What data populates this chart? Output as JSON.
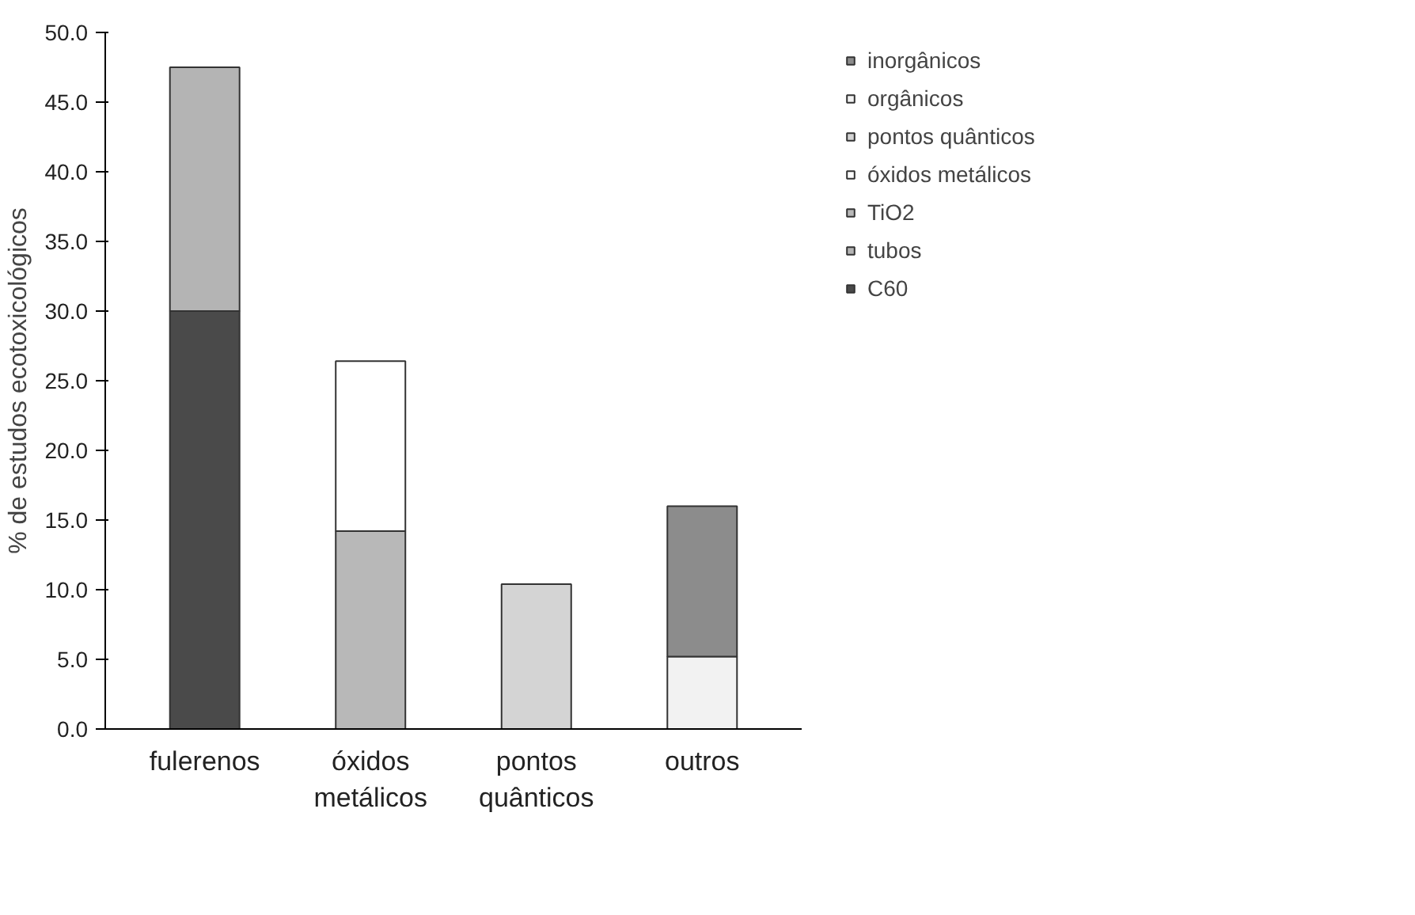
{
  "chart_data": {
    "type": "bar",
    "stacked": true,
    "ylabel": "% de estudos ecotoxicológicos",
    "categories": [
      "fulerenos",
      "óxidos metálicos",
      "pontos quânticos",
      "outros"
    ],
    "series": [
      {
        "name": "C60",
        "color": "#4a4a4a",
        "values": [
          30.0,
          null,
          null,
          null
        ]
      },
      {
        "name": "tubos",
        "color": "#b4b4b4",
        "values": [
          17.5,
          null,
          null,
          null
        ]
      },
      {
        "name": "TiO2",
        "color": "#b8b8b8",
        "values": [
          null,
          14.2,
          null,
          null
        ]
      },
      {
        "name": "óxidos metálicos",
        "color": "#ffffff",
        "values": [
          null,
          12.2,
          null,
          null
        ]
      },
      {
        "name": "pontos quânticos",
        "color": "#d4d4d4",
        "values": [
          null,
          null,
          10.4,
          null
        ]
      },
      {
        "name": "orgânicos",
        "color": "#f2f2f2",
        "values": [
          null,
          null,
          null,
          5.2
        ]
      },
      {
        "name": "inorgânicos",
        "color": "#8c8c8c",
        "values": [
          null,
          null,
          null,
          10.8
        ]
      }
    ],
    "ylim": [
      0,
      50
    ],
    "yticks": [
      {
        "value": 0,
        "label": "0.0"
      },
      {
        "value": 5,
        "label": "5.0"
      },
      {
        "value": 10,
        "label": "10.0"
      },
      {
        "value": 15,
        "label": "15.0"
      },
      {
        "value": 20,
        "label": "20.0"
      },
      {
        "value": 25,
        "label": "25.0"
      },
      {
        "value": 30,
        "label": "30.0"
      },
      {
        "value": 35,
        "label": "35.0"
      },
      {
        "value": 40,
        "label": "40.0"
      },
      {
        "value": 45,
        "label": "45.0"
      },
      {
        "value": 50,
        "label": "50.0"
      }
    ],
    "grid": false,
    "legend": "right"
  }
}
